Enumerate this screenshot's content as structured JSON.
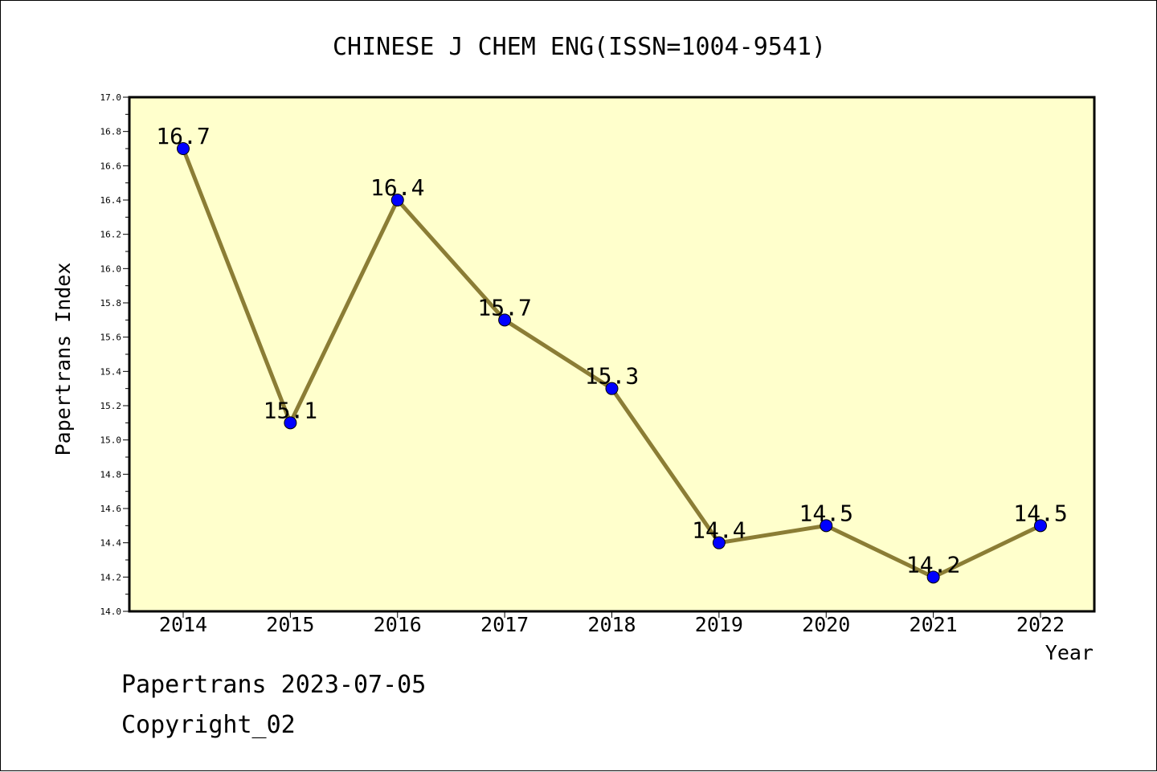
{
  "chart_data": {
    "type": "line",
    "title": "CHINESE J CHEM ENG(ISSN=1004-9541)",
    "xlabel": "Year",
    "ylabel": "Papertrans Index",
    "categories": [
      "2014",
      "2015",
      "2016",
      "2017",
      "2018",
      "2019",
      "2020",
      "2021",
      "2022"
    ],
    "series": [
      {
        "values": [
          16.7,
          15.1,
          16.4,
          15.7,
          15.3,
          14.4,
          14.5,
          14.2,
          14.5
        ],
        "labels": [
          "16.7",
          "15.1",
          "16.4",
          "15.7",
          "15.3",
          "14.4",
          "14.5",
          "14.2",
          "14.5"
        ]
      }
    ],
    "ylim": [
      14.0,
      17.0
    ],
    "yticks": [
      "14.0",
      "14.2",
      "14.4",
      "14.6",
      "14.8",
      "15.0",
      "15.2",
      "15.4",
      "15.6",
      "15.8",
      "16.0",
      "16.2",
      "16.4",
      "16.6",
      "16.8",
      "17.0"
    ],
    "grid": false,
    "colors": {
      "plot_background": "#ffffcc",
      "line": "#8b7d35",
      "marker": "#0000ff"
    }
  },
  "footer": {
    "line1": "Papertrans 2023-07-05",
    "line2": "Copyright_02"
  }
}
